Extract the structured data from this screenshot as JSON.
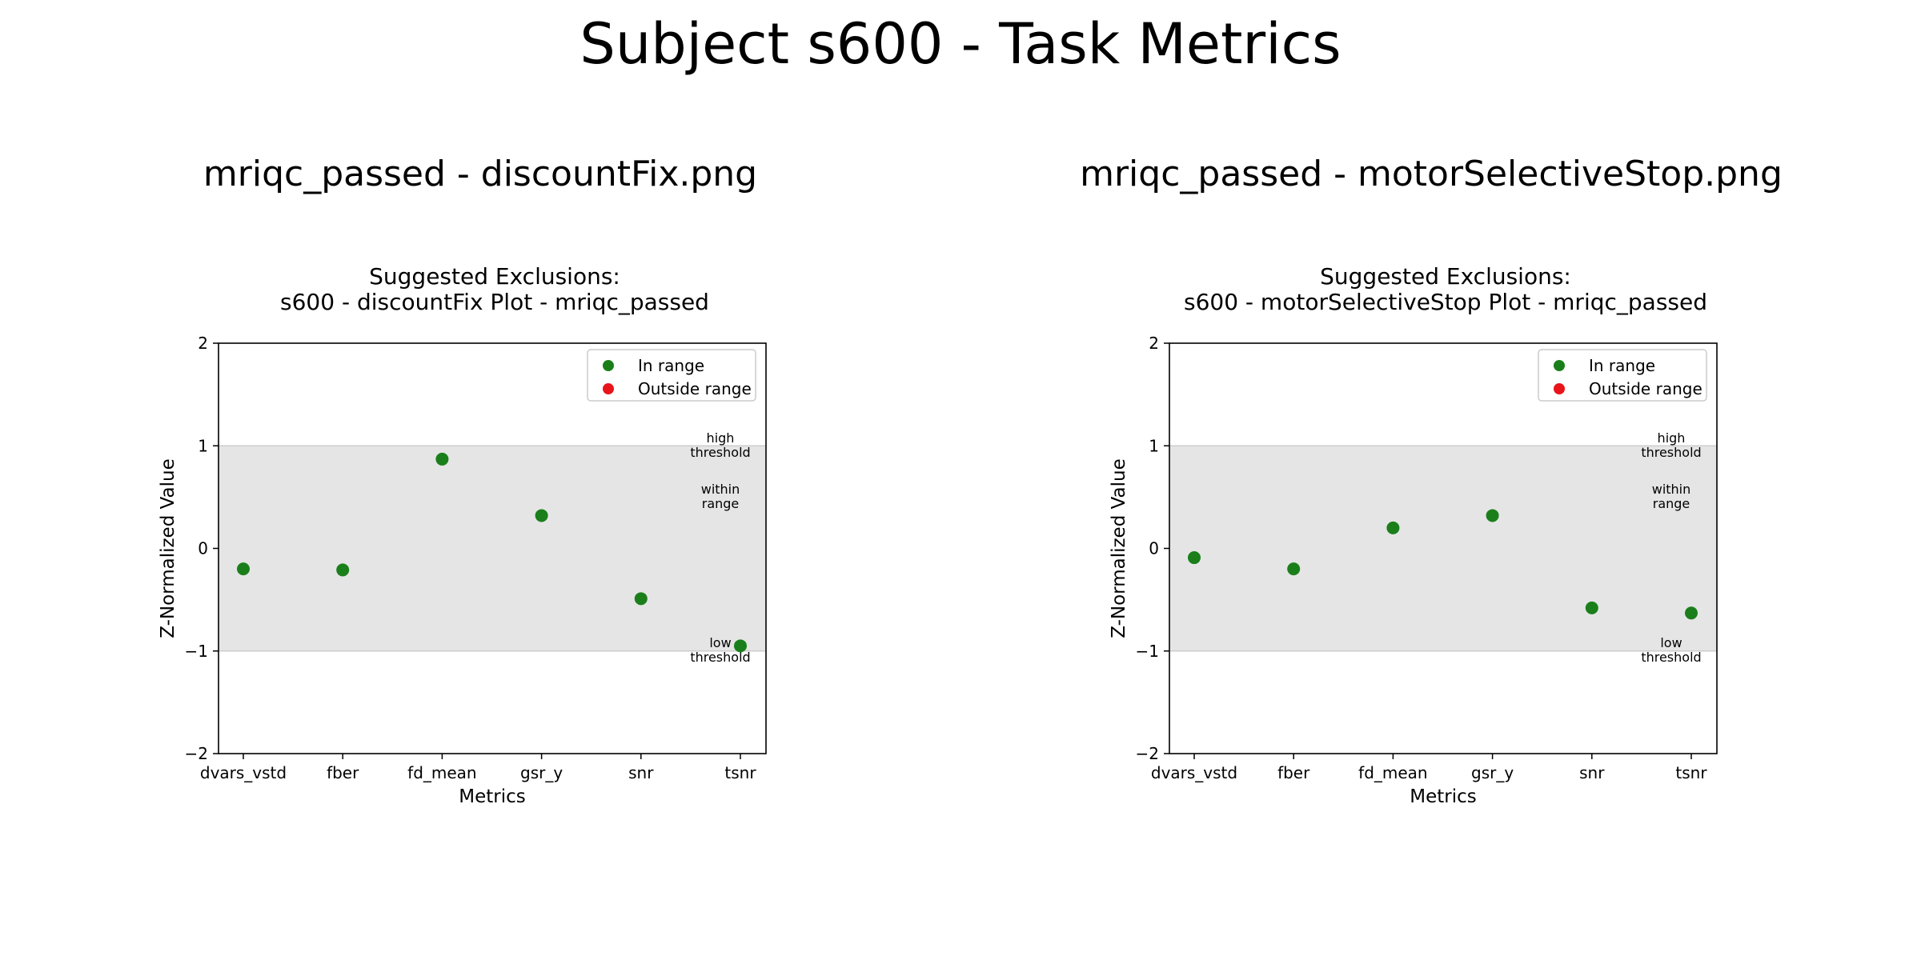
{
  "figure": {
    "title": "Subject s600 - Task Metrics"
  },
  "colors": {
    "in_range": "#1a7f1a",
    "outside_range": "#e8141a",
    "band": "#e5e5e5",
    "band_edge": "#cccccc"
  },
  "chart_data": [
    {
      "type": "scatter",
      "panel_title": "mriqc_passed - discountFix.png",
      "title_line1": "Suggested Exclusions:",
      "title_line2": "s600 - discountFix Plot - mriqc_passed",
      "xlabel": "Metrics",
      "ylabel": "Z-Normalized Value",
      "categories": [
        "dvars_vstd",
        "fber",
        "fd_mean",
        "gsr_y",
        "snr",
        "tsnr"
      ],
      "values": [
        -0.2,
        -0.21,
        0.87,
        0.32,
        -0.49,
        -0.95
      ],
      "status": [
        "in",
        "in",
        "in",
        "in",
        "in",
        "in"
      ],
      "ylim": [
        -2,
        2
      ],
      "yticks": [
        "2",
        "1",
        "0",
        "−1",
        "−2"
      ],
      "threshold_band": [
        -1,
        1
      ],
      "band_labels": {
        "high": [
          "high",
          "threshold"
        ],
        "within": [
          "within",
          "range"
        ],
        "low": [
          "low",
          "threshold"
        ]
      },
      "legend": {
        "position": "upper-right",
        "entries": [
          "In range",
          "Outside range"
        ]
      },
      "grid": false
    },
    {
      "type": "scatter",
      "panel_title": "mriqc_passed - motorSelectiveStop.png",
      "title_line1": "Suggested Exclusions:",
      "title_line2": "s600 - motorSelectiveStop Plot - mriqc_passed",
      "xlabel": "Metrics",
      "ylabel": "Z-Normalized Value",
      "categories": [
        "dvars_vstd",
        "fber",
        "fd_mean",
        "gsr_y",
        "snr",
        "tsnr"
      ],
      "values": [
        -0.09,
        -0.2,
        0.2,
        0.32,
        -0.58,
        -0.63
      ],
      "status": [
        "in",
        "in",
        "in",
        "in",
        "in",
        "in"
      ],
      "ylim": [
        -2,
        2
      ],
      "yticks": [
        "2",
        "1",
        "0",
        "−1",
        "−2"
      ],
      "threshold_band": [
        -1,
        1
      ],
      "band_labels": {
        "high": [
          "high",
          "threshold"
        ],
        "within": [
          "within",
          "range"
        ],
        "low": [
          "low",
          "threshold"
        ]
      },
      "legend": {
        "position": "upper-right",
        "entries": [
          "In range",
          "Outside range"
        ]
      },
      "grid": false
    }
  ]
}
